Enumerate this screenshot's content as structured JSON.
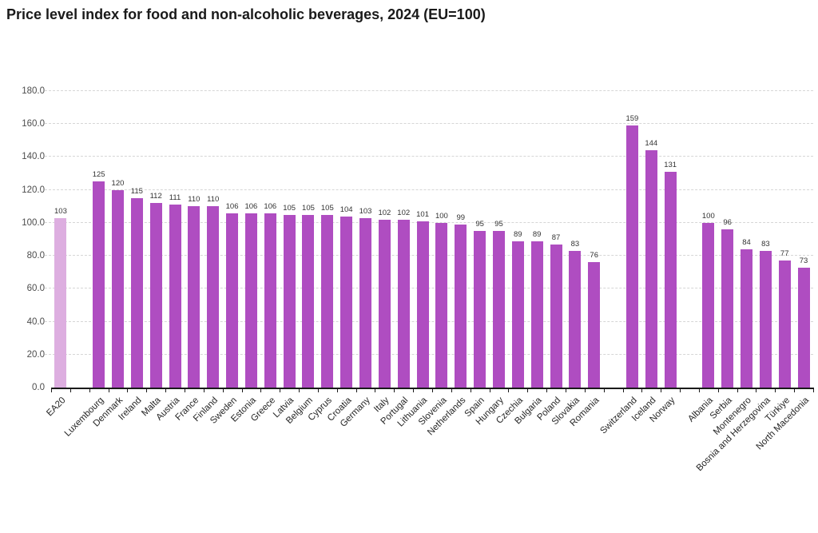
{
  "chart_data": {
    "type": "bar",
    "title": "Price level index for food and non-alcoholic beverages, 2024 (EU=100)",
    "xlabel": "",
    "ylabel": "",
    "ylim": [
      0,
      180
    ],
    "ytick_step": 20,
    "y_ticks": [
      "0.0",
      "20.0",
      "40.0",
      "60.0",
      "80.0",
      "100.0",
      "120.0",
      "140.0",
      "160.0",
      "180.0"
    ],
    "grid": "horizontal dashed gridlines, gap slots between country groups",
    "legend": "none",
    "categories": [
      "EA20",
      null,
      "Luxembourg",
      "Denmark",
      "Ireland",
      "Malta",
      "Austria",
      "France",
      "Finland",
      "Sweden",
      "Estonia",
      "Greece",
      "Latvia",
      "Belgium",
      "Cyprus",
      "Croatia",
      "Germany",
      "Italy",
      "Portugal",
      "Lithuania",
      "Slovenia",
      "Netherlands",
      "Spain",
      "Hungary",
      "Czechia",
      "Bulgaria",
      "Poland",
      "Slovakia",
      "Romania",
      null,
      "Switzerland",
      "Iceland",
      "Norway",
      null,
      "Albania",
      "Serbia",
      "Montenegro",
      "Bosnia and Herzegovina",
      "Türkiye",
      "North Macedonia"
    ],
    "values": [
      103,
      null,
      125,
      120,
      115,
      112,
      111,
      110,
      110,
      106,
      106,
      106,
      105,
      105,
      105,
      104,
      103,
      102,
      102,
      101,
      100,
      99,
      95,
      95,
      89,
      89,
      87,
      83,
      76,
      null,
      159,
      144,
      131,
      null,
      100,
      96,
      84,
      83,
      77,
      73
    ],
    "highlighted_category": "EA20",
    "colors": {
      "bar": "#af4dc1",
      "highlight_bar": "#ddaee0",
      "gridline": "#d6d6d6",
      "axis": "#1a1a1a",
      "value_label": "#333333",
      "tick_label": "#262626",
      "y_tick_label": "#4d4d4d",
      "background": "#ffffff"
    }
  }
}
